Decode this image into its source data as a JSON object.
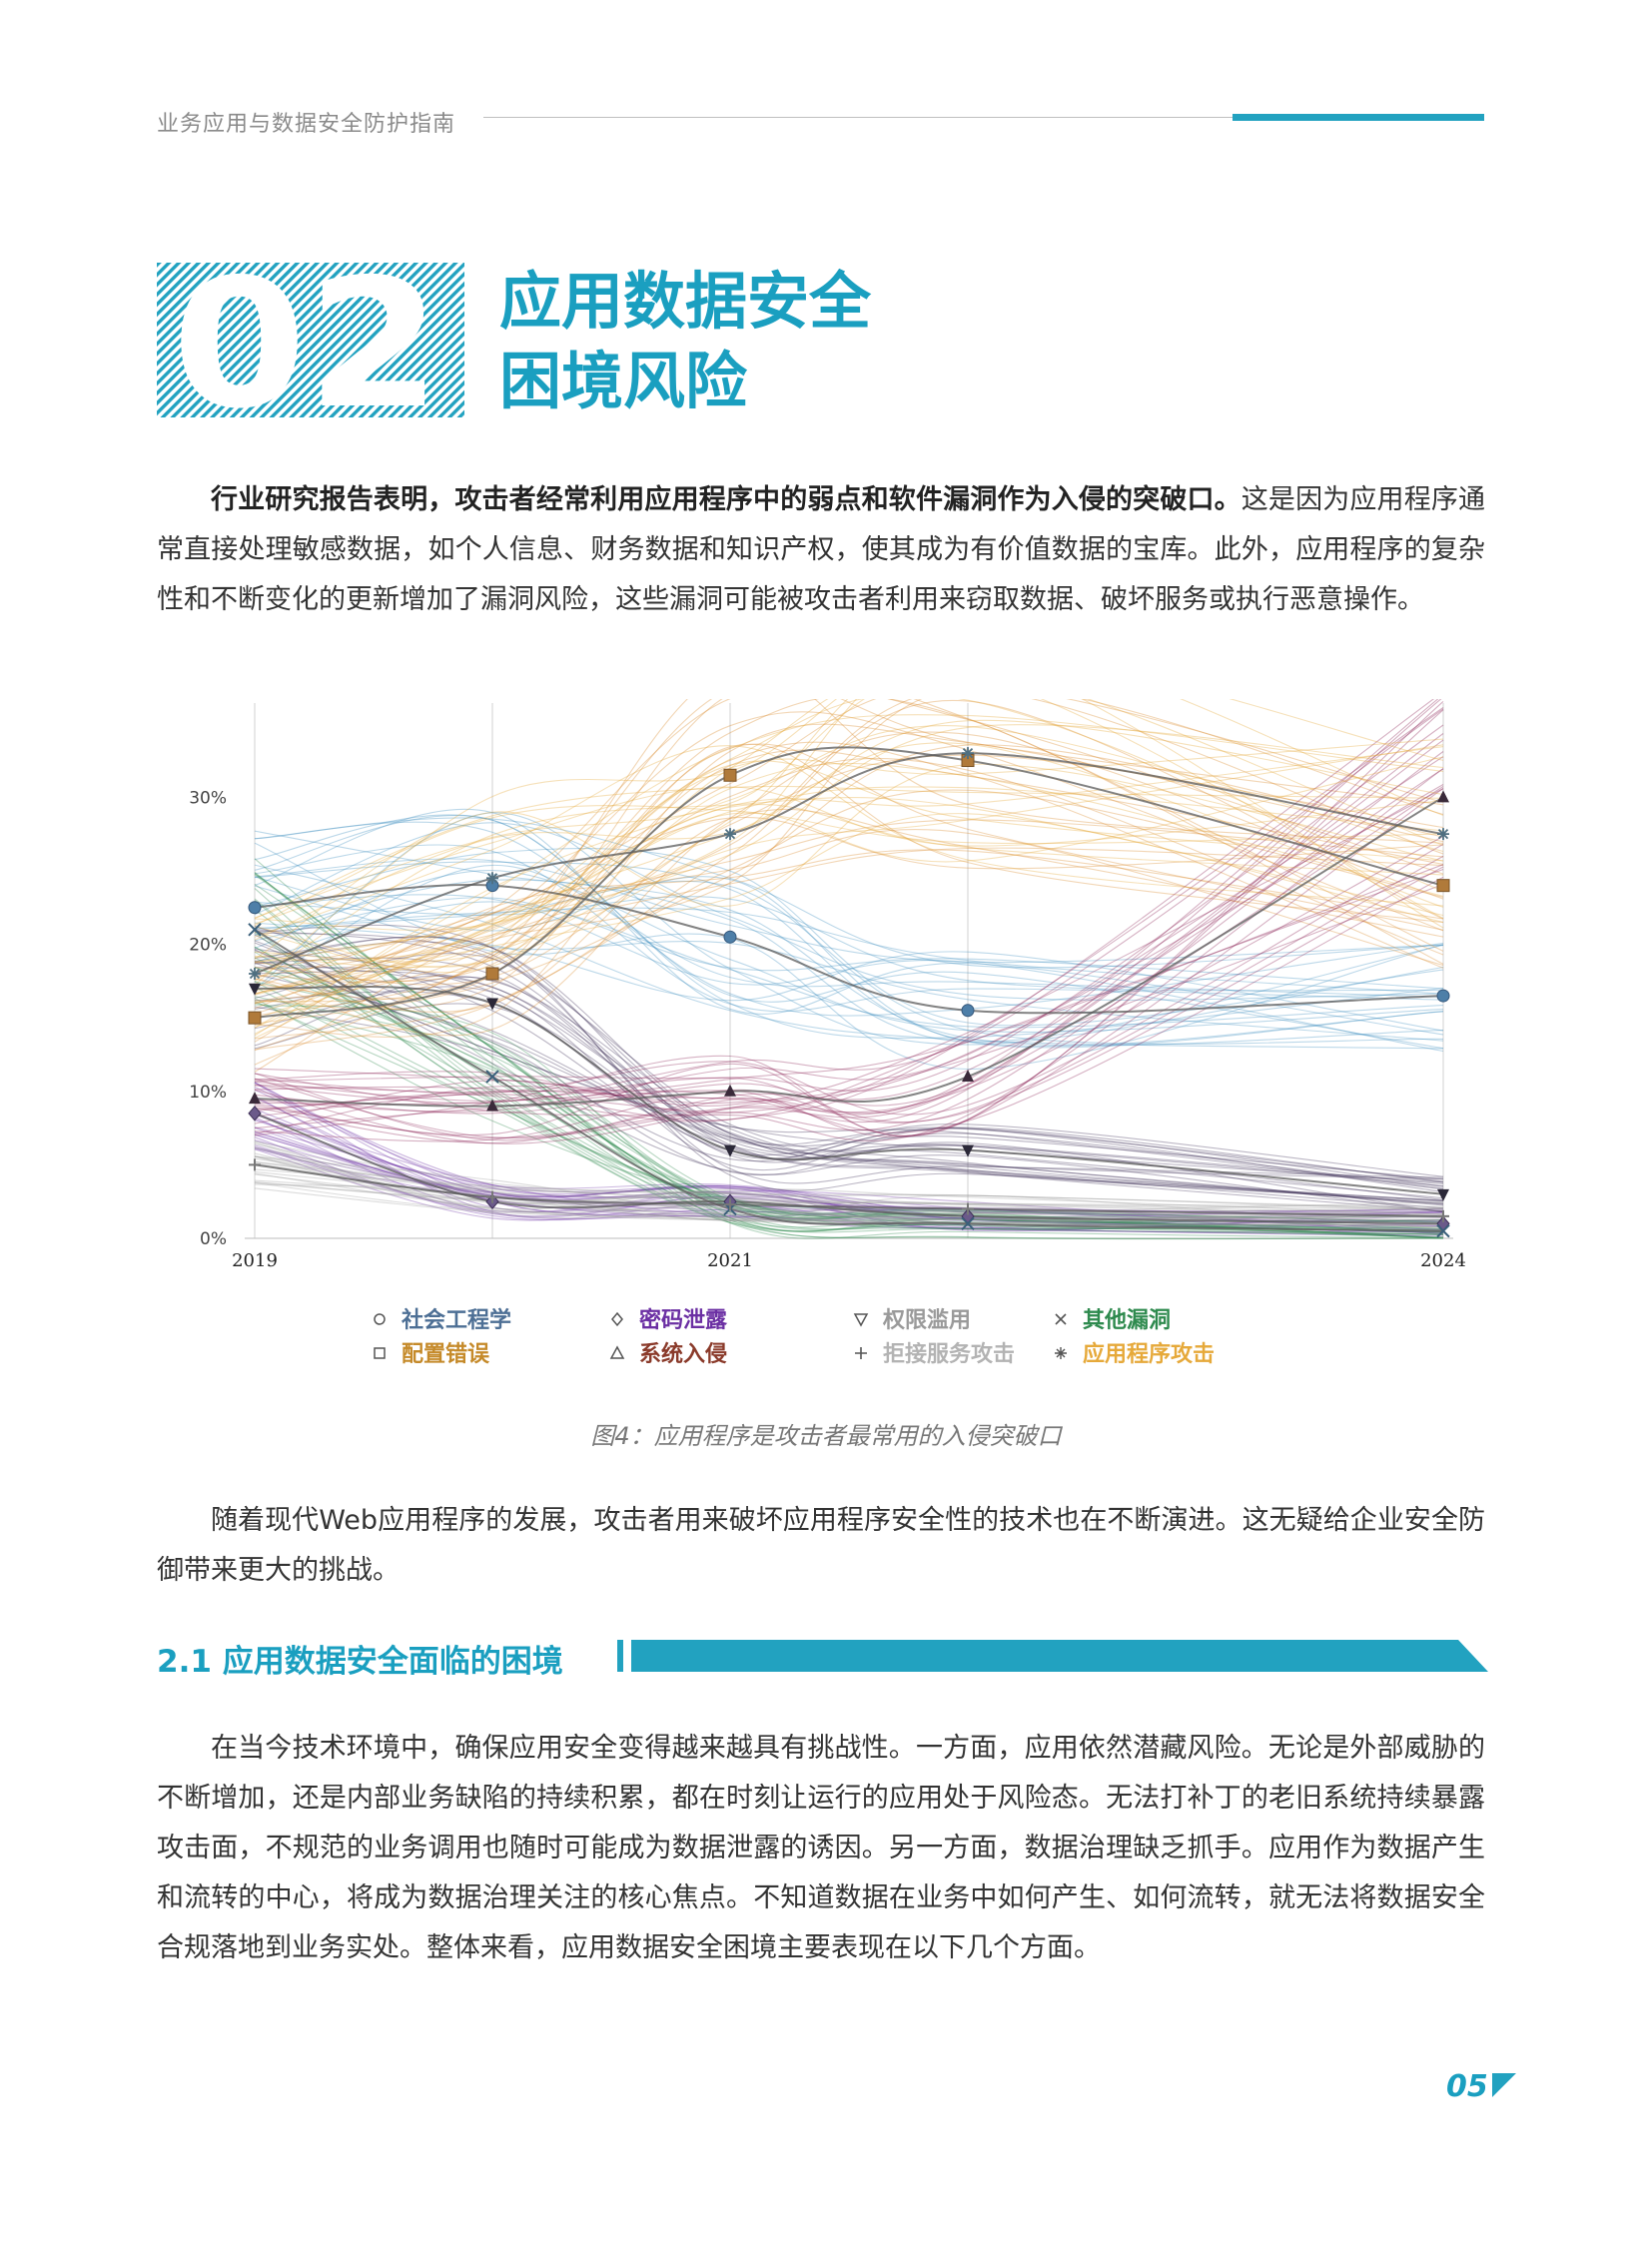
{
  "header": {
    "title": "业务应用与数据安全防护指南"
  },
  "chapter": {
    "number": "02",
    "title_line1": "应用数据安全",
    "title_line2": "困境风险"
  },
  "intro": {
    "bold": "行业研究报告表明，攻击者经常利用应用程序中的弱点和软件漏洞作为入侵的突破口。",
    "rest": "这是因为应用程序通常直接处理敏感数据，如个人信息、财务数据和知识产权，使其成为有价值数据的宝库。此外，应用程序的复杂性和不断变化的更新增加了漏洞风险，这些漏洞可能被攻击者利用来窃取数据、破坏服务或执行恶意操作。"
  },
  "chart_data": {
    "type": "line",
    "x": [
      2019,
      2020,
      2021,
      2022,
      2024
    ],
    "x_tick_labels": [
      "2019",
      "2021",
      "2024"
    ],
    "y_tick_labels": [
      "0%",
      "10%",
      "20%",
      "30%"
    ],
    "ylim": [
      0,
      36
    ],
    "series": [
      {
        "name": "社会工程学",
        "marker": "circle",
        "color": "#3f8fbf",
        "values": [
          22.5,
          24,
          20.5,
          15.5,
          16.5
        ]
      },
      {
        "name": "密码泄露",
        "marker": "diamond",
        "color": "#6b2fa3",
        "values": [
          8.5,
          2.5,
          2.5,
          1.5,
          1
        ]
      },
      {
        "name": "权限滥用",
        "marker": "triangle-down",
        "color": "#3b2f55",
        "values": [
          17,
          16,
          6,
          6,
          3
        ]
      },
      {
        "name": "其他漏洞",
        "marker": "x",
        "color": "#2e8a4e",
        "values": [
          21,
          11,
          2,
          1,
          0.5
        ]
      },
      {
        "name": "配置错误",
        "marker": "square",
        "color": "#d98a2a",
        "values": [
          15,
          18,
          31.5,
          32.5,
          24
        ]
      },
      {
        "name": "系统入侵",
        "marker": "triangle-up",
        "color": "#8a1f52",
        "values": [
          9.5,
          9,
          10,
          11,
          30
        ]
      },
      {
        "name": "拒接服务攻击",
        "marker": "plus",
        "color": "#9a9a9a",
        "values": [
          5,
          2.8,
          2.3,
          2,
          1.5
        ]
      },
      {
        "name": "应用程序攻击",
        "marker": "asterisk",
        "color": "#e6a93a",
        "values": [
          18,
          24.5,
          27.5,
          33,
          27.5
        ]
      }
    ],
    "legend": {
      "position": "bottom"
    },
    "grid": true
  },
  "legend_colors": {
    "社会工程学": "#4d6f95",
    "密码泄露": "#6b2fa3",
    "权限滥用": "#9a9a9a",
    "其他漏洞": "#2e8a4e",
    "配置错误": "#c58a2a",
    "系统入侵": "#8a3a2a",
    "拒接服务攻击": "#b3b3b3",
    "应用程序攻击": "#e6a93a"
  },
  "figure": {
    "caption": "图4：应用程序是攻击者最常用的入侵突破口"
  },
  "para2": "随着现代Web应用程序的发展，攻击者用来破坏应用程序安全性的技术也在不断演进。这无疑给企业安全防御带来更大的挑战。",
  "section": {
    "title": "2.1 应用数据安全面临的困境"
  },
  "para3": "在当今技术环境中，确保应用安全变得越来越具有挑战性。一方面，应用依然潜藏风险。无论是外部威胁的不断增加，还是内部业务缺陷的持续积累，都在时刻让运行的应用处于风险态。无法打补丁的老旧系统持续暴露攻击面，不规范的业务调用也随时可能成为数据泄露的诱因。另一方面，数据治理缺乏抓手。应用作为数据产生和流转的中心，将成为数据治理关注的核心焦点。不知道数据在业务中如何产生、如何流转，就无法将数据安全合规落地到业务实处。整体来看，应用数据安全困境主要表现在以下几个方面。",
  "page_number": "05"
}
